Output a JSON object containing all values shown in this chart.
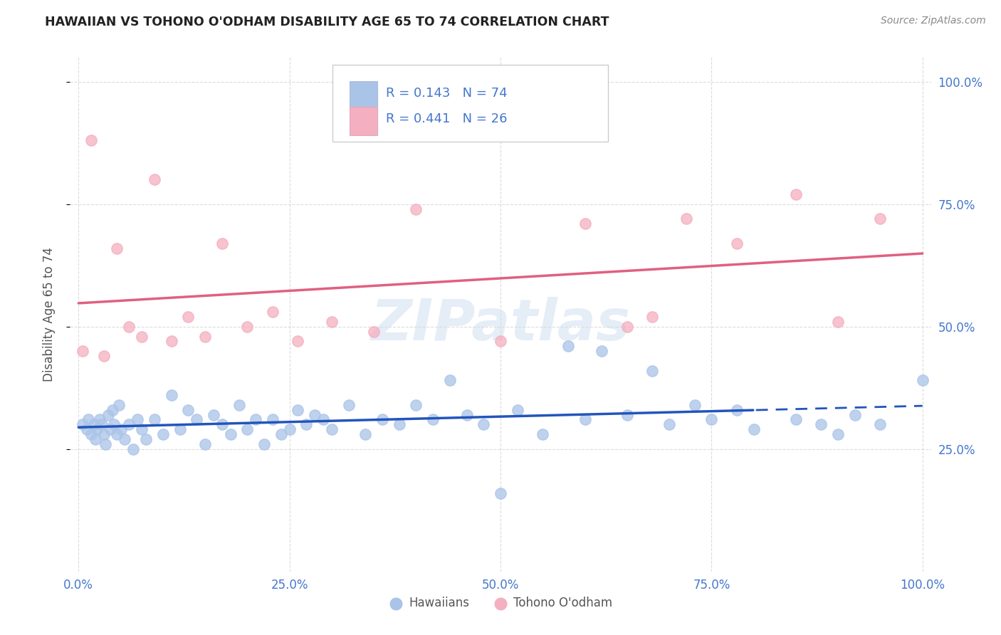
{
  "title": "HAWAIIAN VS TOHONO O'ODHAM DISABILITY AGE 65 TO 74 CORRELATION CHART",
  "source": "Source: ZipAtlas.com",
  "ylabel": "Disability Age 65 to 74",
  "legend_R1": "R = 0.143",
  "legend_N1": "N = 74",
  "legend_R2": "R = 0.441",
  "legend_N2": "N = 26",
  "legend_label1": "Hawaiians",
  "legend_label2": "Tohono O'odham",
  "watermark": "ZIPatlas",
  "hawaiian_color": "#aac4e8",
  "tohono_color": "#f4afc0",
  "hawaiian_line_color": "#2255bb",
  "tohono_line_color": "#e06080",
  "background_color": "#ffffff",
  "grid_color": "#cccccc",
  "tick_color": "#4477cc",
  "hawaiian_x": [
    0.5,
    1.0,
    1.2,
    1.5,
    1.8,
    2.0,
    2.2,
    2.5,
    2.8,
    3.0,
    3.2,
    3.5,
    3.8,
    4.0,
    4.2,
    4.5,
    4.8,
    5.0,
    5.5,
    6.0,
    6.5,
    7.0,
    7.5,
    8.0,
    9.0,
    10.0,
    11.0,
    12.0,
    13.0,
    14.0,
    15.0,
    16.0,
    17.0,
    18.0,
    19.0,
    20.0,
    21.0,
    22.0,
    23.0,
    24.0,
    25.0,
    26.0,
    27.0,
    28.0,
    29.0,
    30.0,
    32.0,
    34.0,
    36.0,
    38.0,
    40.0,
    42.0,
    44.0,
    46.0,
    48.0,
    50.0,
    52.0,
    55.0,
    58.0,
    60.0,
    62.0,
    65.0,
    68.0,
    70.0,
    73.0,
    75.0,
    78.0,
    80.0,
    85.0,
    88.0,
    90.0,
    92.0,
    95.0,
    100.0
  ],
  "hawaiian_y": [
    30.0,
    29.0,
    31.0,
    28.0,
    30.0,
    27.0,
    29.0,
    31.0,
    30.0,
    28.0,
    26.0,
    32.0,
    29.0,
    33.0,
    30.0,
    28.0,
    34.0,
    29.0,
    27.0,
    30.0,
    25.0,
    31.0,
    29.0,
    27.0,
    31.0,
    28.0,
    36.0,
    29.0,
    33.0,
    31.0,
    26.0,
    32.0,
    30.0,
    28.0,
    34.0,
    29.0,
    31.0,
    26.0,
    31.0,
    28.0,
    29.0,
    33.0,
    30.0,
    32.0,
    31.0,
    29.0,
    34.0,
    28.0,
    31.0,
    30.0,
    34.0,
    31.0,
    39.0,
    32.0,
    30.0,
    16.0,
    33.0,
    28.0,
    46.0,
    31.0,
    45.0,
    32.0,
    41.0,
    30.0,
    34.0,
    31.0,
    33.0,
    29.0,
    31.0,
    30.0,
    28.0,
    32.0,
    30.0,
    39.0
  ],
  "tohono_x": [
    0.5,
    1.5,
    3.0,
    4.5,
    6.0,
    7.5,
    9.0,
    11.0,
    13.0,
    15.0,
    17.0,
    20.0,
    23.0,
    26.0,
    30.0,
    35.0,
    40.0,
    50.0,
    60.0,
    65.0,
    68.0,
    72.0,
    78.0,
    85.0,
    90.0,
    95.0
  ],
  "tohono_y": [
    45.0,
    88.0,
    44.0,
    66.0,
    50.0,
    48.0,
    80.0,
    47.0,
    52.0,
    48.0,
    67.0,
    50.0,
    53.0,
    47.0,
    51.0,
    49.0,
    74.0,
    47.0,
    71.0,
    50.0,
    52.0,
    72.0,
    67.0,
    77.0,
    51.0,
    72.0
  ]
}
